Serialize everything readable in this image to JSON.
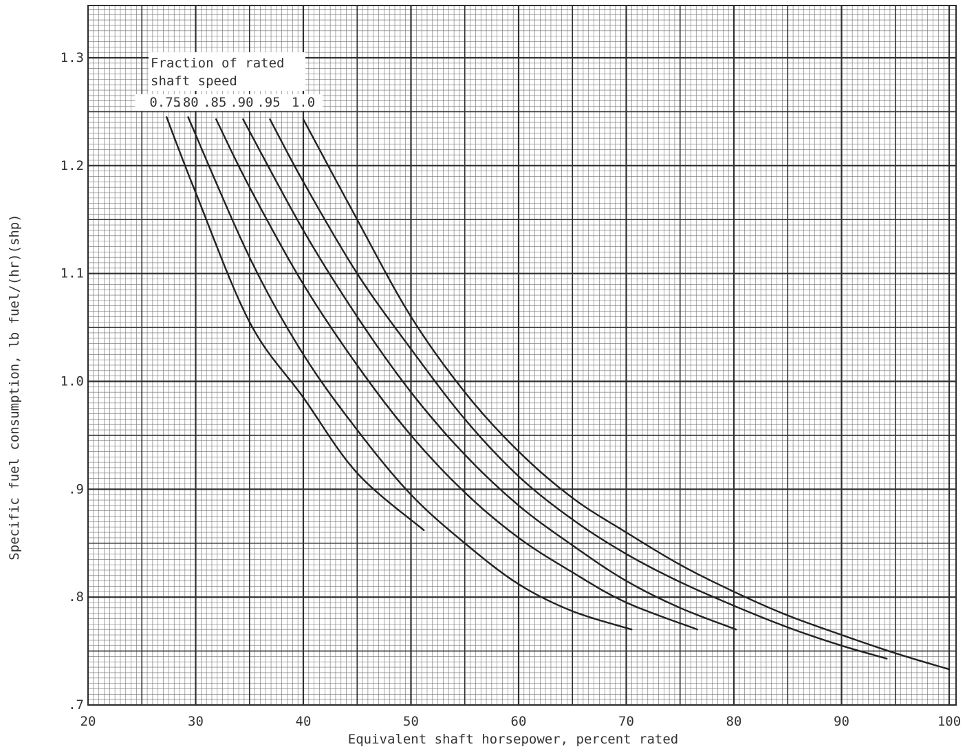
{
  "chart_data": {
    "type": "line",
    "title": "",
    "xlabel": "Equivalent shaft horsepower, percent rated",
    "ylabel": "Specific fuel consumption, lb fuel/(hr)(shp)",
    "xlim": [
      20,
      100
    ],
    "ylim": [
      0.7,
      1.35
    ],
    "x_ticks": [
      20,
      30,
      40,
      50,
      60,
      70,
      80,
      90,
      100
    ],
    "x_tick_labels": [
      "20",
      "30",
      "40",
      "50",
      "60",
      "70",
      "80",
      "90",
      "100"
    ],
    "y_ticks": [
      0.7,
      0.8,
      0.9,
      1.0,
      1.1,
      1.2,
      1.3
    ],
    "y_tick_labels": [
      ".7",
      ".8",
      ".9",
      "1.0",
      "1.1",
      "1.2",
      "1.3"
    ],
    "grid": true,
    "legend_title": "Fraction of rated\nshaft speed",
    "legend_title_lines": [
      "Fraction of rated",
      "shaft speed"
    ],
    "legend_position": "top-left",
    "series": [
      {
        "name": "0.75",
        "x": [
          27.3,
          30,
          35,
          40,
          45,
          51.2
        ],
        "y": [
          1.245,
          1.175,
          1.055,
          0.985,
          0.915,
          0.862
        ]
      },
      {
        "name": ".80",
        "x": [
          29.3,
          35,
          40,
          45,
          50,
          55,
          60,
          65,
          70.5
        ],
        "y": [
          1.245,
          1.115,
          1.025,
          0.955,
          0.895,
          0.85,
          0.812,
          0.787,
          0.77
        ]
      },
      {
        "name": ".85",
        "x": [
          31.9,
          35,
          40,
          45,
          50,
          55,
          60,
          65,
          70,
          76.6
        ],
        "y": [
          1.243,
          1.18,
          1.09,
          1.015,
          0.95,
          0.897,
          0.855,
          0.823,
          0.795,
          0.77
        ]
      },
      {
        "name": ".90",
        "x": [
          34.4,
          40,
          45,
          50,
          55,
          60,
          65,
          70,
          75,
          80.2
        ],
        "y": [
          1.243,
          1.14,
          1.06,
          0.99,
          0.932,
          0.885,
          0.848,
          0.815,
          0.79,
          0.77
        ]
      },
      {
        "name": ".95",
        "x": [
          36.9,
          40,
          45,
          50,
          55,
          60,
          65,
          70,
          75,
          80,
          85,
          90,
          94.2
        ],
        "y": [
          1.243,
          1.185,
          1.1,
          1.03,
          0.965,
          0.912,
          0.872,
          0.84,
          0.814,
          0.792,
          0.772,
          0.755,
          0.743
        ]
      },
      {
        "name": "1.0",
        "x": [
          40,
          45,
          50,
          55,
          60,
          65,
          70,
          75,
          80,
          85,
          90,
          95,
          100
        ],
        "y": [
          1.243,
          1.15,
          1.06,
          0.99,
          0.935,
          0.892,
          0.86,
          0.83,
          0.805,
          0.783,
          0.765,
          0.748,
          0.733
        ]
      }
    ],
    "colors": {
      "grid_fine": "#6e6e6e",
      "grid_major": "#2f2f2f",
      "curve": "#222222",
      "paper": "#ffffff"
    }
  }
}
